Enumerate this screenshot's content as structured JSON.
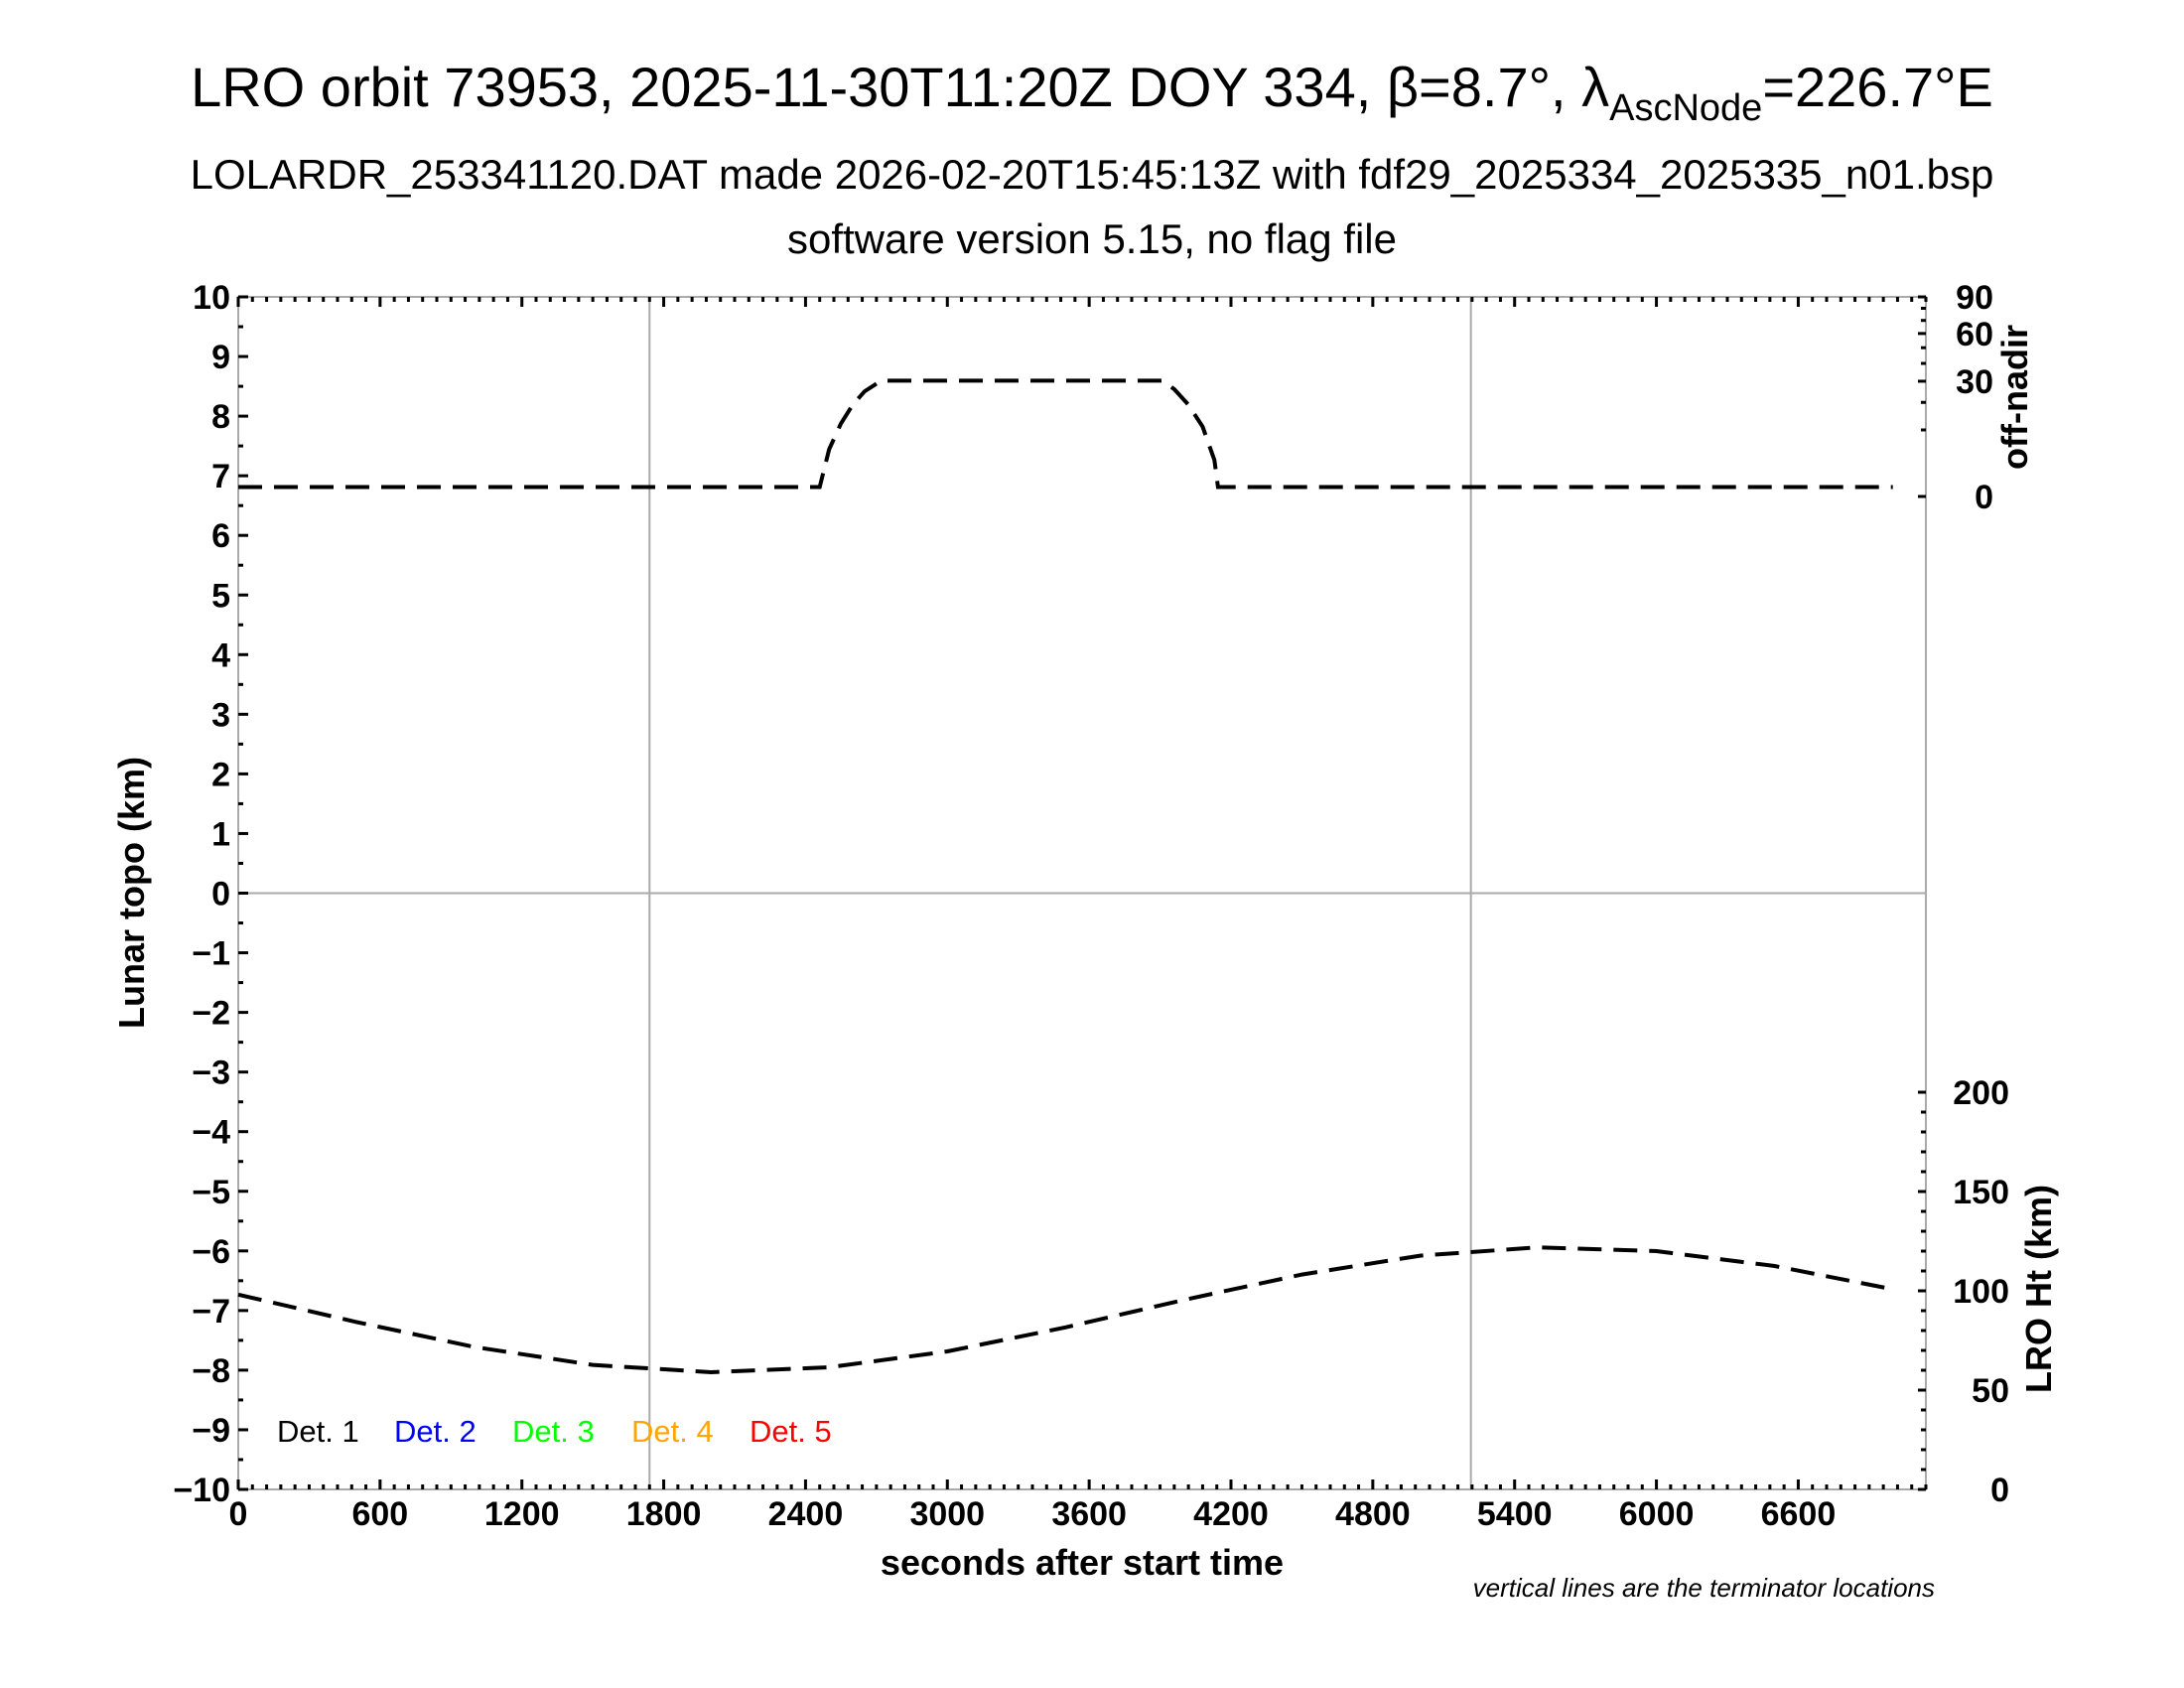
{
  "chart_data": {
    "type": "line",
    "title_main": "LRO orbit 73953, 2025-11-30T11:20Z DOY 334, β=8.7°, λ",
    "title_sub": "AscNode",
    "title_end": "=226.7°E",
    "subtitle1": "LOLARDR_253341120.DAT made 2026-02-20T15:45:13Z with fdf29_2025334_2025335_n01.bsp",
    "subtitle2": "software version 5.15, no flag file",
    "xlabel": "seconds after start time",
    "ylabel_left": "Lunar topo (km)",
    "ylabel_right_top": "off-nadir",
    "ylabel_right_bottom": "LRO Ht (km)",
    "note": "vertical lines are the terminator locations",
    "xlim": [
      0,
      7140
    ],
    "x_ticks": [
      "0",
      "600",
      "1200",
      "1800",
      "2400",
      "3000",
      "3600",
      "4200",
      "4800",
      "5400",
      "6000",
      "6600"
    ],
    "ylim_left": [
      -10,
      10
    ],
    "y_ticks_left": [
      "10",
      "9",
      "8",
      "7",
      "6",
      "5",
      "4",
      "3",
      "2",
      "1",
      "0",
      "−1",
      "−2",
      "−3",
      "−4",
      "−5",
      "−6",
      "−7",
      "−8",
      "−9",
      "−10"
    ],
    "offnadir_scale": "sqrt",
    "offnadir_ticks": [
      "0",
      "30",
      "60",
      "90"
    ],
    "ht_ticks": [
      "0",
      "50",
      "100",
      "150",
      "200"
    ],
    "grid": {
      "horizontal_at_topo": 0,
      "terminator_x": [
        1740,
        5215
      ],
      "color": "#aaaaaa"
    },
    "legend": [
      {
        "label": "Det. 1",
        "color": "#000000"
      },
      {
        "label": "Det. 2",
        "color": "#0000ff"
      },
      {
        "label": "Det. 3",
        "color": "#00ff00"
      },
      {
        "label": "Det. 4",
        "color": "#ffa500"
      },
      {
        "label": "Det. 5",
        "color": "#ff0000"
      }
    ],
    "legend_placement": "bottom-left",
    "series": [
      {
        "axis": "off-nadir",
        "style": "dashed",
        "x": [
          0,
          1000,
          2000,
          2460,
          2500,
          2550,
          2600,
          2650,
          2720,
          3300,
          3910,
          3960,
          4020,
          4080,
          4130,
          4145,
          5000,
          6000,
          7000
        ],
        "y": [
          0.2,
          0.2,
          0.2,
          0.2,
          5,
          12,
          19,
          25,
          30.3,
          30.3,
          30.3,
          26,
          19,
          11,
          3,
          0.2,
          0.2,
          0.2,
          0.2
        ]
      },
      {
        "axis": "LRO Ht",
        "style": "dashed",
        "x": [
          0,
          500,
          1000,
          1500,
          2000,
          2500,
          3000,
          3500,
          4000,
          4500,
          5000,
          5500,
          6000,
          6500,
          7000
        ],
        "y": [
          98.1,
          84.3,
          71.7,
          62.7,
          59.0,
          61.5,
          69.5,
          81.6,
          95.4,
          108.2,
          117.7,
          121.9,
          120.0,
          112.5,
          100.8
        ]
      }
    ]
  }
}
